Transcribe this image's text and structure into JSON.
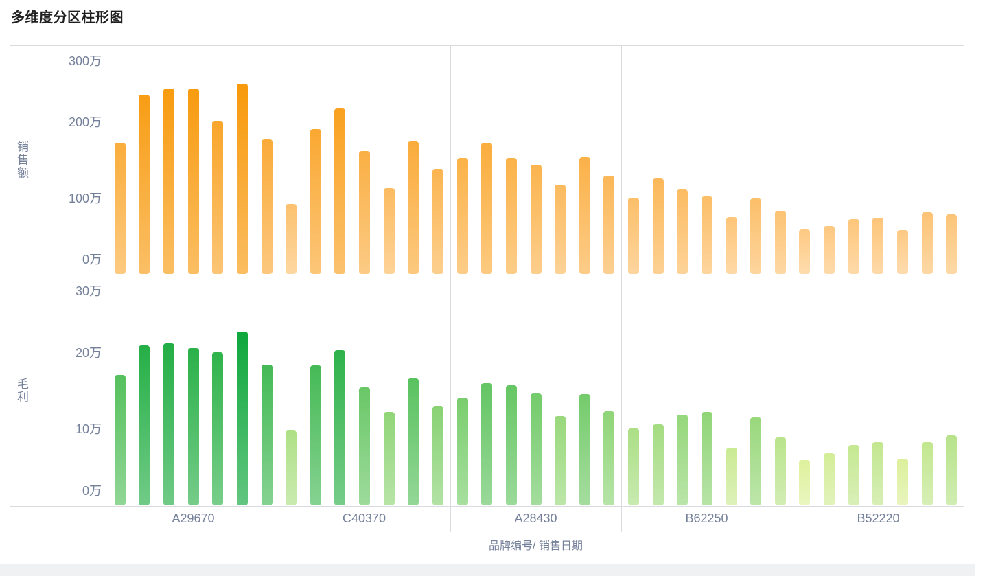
{
  "title": "多维度分区柱形图",
  "colors": {
    "axis_text": "#75819A",
    "grid_border": "#D9DBDE",
    "sales_low": "#FDC983",
    "sales_high": "#F8990B",
    "profit_low": "#DEF19C",
    "profit_high": "#0FA73C"
  },
  "chart_data": {
    "type": "bar",
    "title": "多维度分区柱形图",
    "categories": [
      "A29670",
      "C40370",
      "A28430",
      "B62250",
      "B52220"
    ],
    "bars_per_group": 7,
    "x_axis_title": "品牌编号/ 销售日期",
    "legend": "none",
    "grid": "partitioned, vertical separators between brand groups, no horizontal gridlines",
    "rows": [
      {
        "name": "销售额",
        "unit": "万",
        "ylim": [
          0,
          300
        ],
        "yticks": [
          0,
          100,
          200,
          300
        ],
        "tick_labels": [
          "0万",
          "100万",
          "200万",
          "300万"
        ],
        "color_low": "#FDC983",
        "color_high": "#F8990B",
        "values": [
          [
            172,
            235,
            243,
            243,
            201,
            250,
            177
          ],
          [
            92,
            190,
            217,
            161,
            113,
            174,
            138
          ],
          [
            152,
            172,
            152,
            143,
            117,
            153,
            129
          ],
          [
            100,
            125,
            111,
            102,
            75,
            99,
            83
          ],
          [
            59,
            63,
            72,
            74,
            58,
            81,
            78
          ]
        ]
      },
      {
        "name": "毛利",
        "unit": "万",
        "ylim": [
          0,
          30
        ],
        "yticks": [
          0,
          10,
          20,
          30
        ],
        "tick_labels": [
          "0万",
          "10万",
          "20万",
          "30万"
        ],
        "color_low": "#DEF19C",
        "color_high": "#0FA73C",
        "values": [
          [
            17,
            20.9,
            21.1,
            20.5,
            20,
            22.7,
            18.4
          ],
          [
            9.8,
            18.3,
            20.2,
            15.4,
            12.2,
            16.6,
            12.9
          ],
          [
            14.1,
            15.9,
            15.7,
            14.6,
            11.6,
            14.5,
            12.3
          ],
          [
            10,
            10.6,
            11.8,
            12.2,
            7.5,
            11.5,
            8.9
          ],
          [
            5.9,
            6.8,
            7.9,
            8.2,
            6.1,
            8.2,
            9.1
          ]
        ]
      }
    ]
  }
}
